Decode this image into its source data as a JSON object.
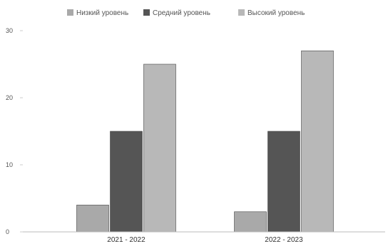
{
  "chart_data": {
    "type": "bar",
    "categories": [
      "2021 - 2022",
      "2022 - 2023"
    ],
    "series": [
      {
        "name": "Низкий уровень",
        "values": [
          4,
          3
        ],
        "color": "#a9a9a9"
      },
      {
        "name": "Средний уровень",
        "values": [
          15,
          15
        ],
        "color": "#555555"
      },
      {
        "name": "Высокий уровень",
        "values": [
          25,
          27
        ],
        "color": "#b8b8b8"
      }
    ],
    "ylim": [
      0,
      30
    ],
    "yticks": [
      0,
      10,
      20,
      30
    ],
    "grid": false,
    "legend_position": "top"
  }
}
